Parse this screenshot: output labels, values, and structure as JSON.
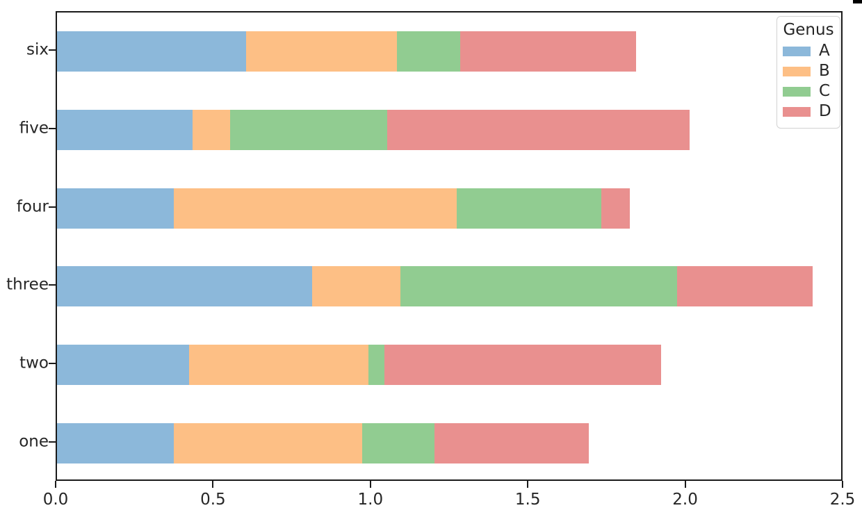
{
  "chart_data": {
    "type": "bar",
    "orientation": "horizontal",
    "stacked": true,
    "title": "",
    "xlabel": "",
    "ylabel": "",
    "categories": [
      "one",
      "two",
      "three",
      "four",
      "five",
      "six"
    ],
    "category_order_top_to_bottom": [
      "six",
      "five",
      "four",
      "three",
      "two",
      "one"
    ],
    "series": [
      {
        "name": "A",
        "color": "#8CB8DA",
        "values": [
          0.37,
          0.42,
          0.81,
          0.37,
          0.43,
          0.6
        ]
      },
      {
        "name": "B",
        "color": "#FDBF85",
        "values": [
          0.6,
          0.57,
          0.28,
          0.9,
          0.12,
          0.48
        ]
      },
      {
        "name": "C",
        "color": "#91CC91",
        "values": [
          0.23,
          0.05,
          0.88,
          0.46,
          0.5,
          0.2
        ]
      },
      {
        "name": "D",
        "color": "#E9908F",
        "values": [
          0.49,
          0.88,
          0.43,
          0.09,
          0.96,
          0.56
        ]
      }
    ],
    "totals": [
      1.69,
      1.92,
      2.4,
      1.82,
      2.01,
      1.84
    ],
    "xlim": [
      0,
      2.5
    ],
    "xticks": [
      0.0,
      0.5,
      1.0,
      1.5,
      2.0,
      2.5
    ],
    "xtick_labels": [
      "0.0",
      "0.5",
      "1.0",
      "1.5",
      "2.0",
      "2.5"
    ],
    "grid": false,
    "legend": {
      "title": "Genus",
      "position": "upper right",
      "entries": [
        "A",
        "B",
        "C",
        "D"
      ]
    },
    "style": {
      "spine_color": "#1a1a1a",
      "text_color": "#262626",
      "background": "#ffffff",
      "legend_border": "#d2d2d2"
    }
  }
}
